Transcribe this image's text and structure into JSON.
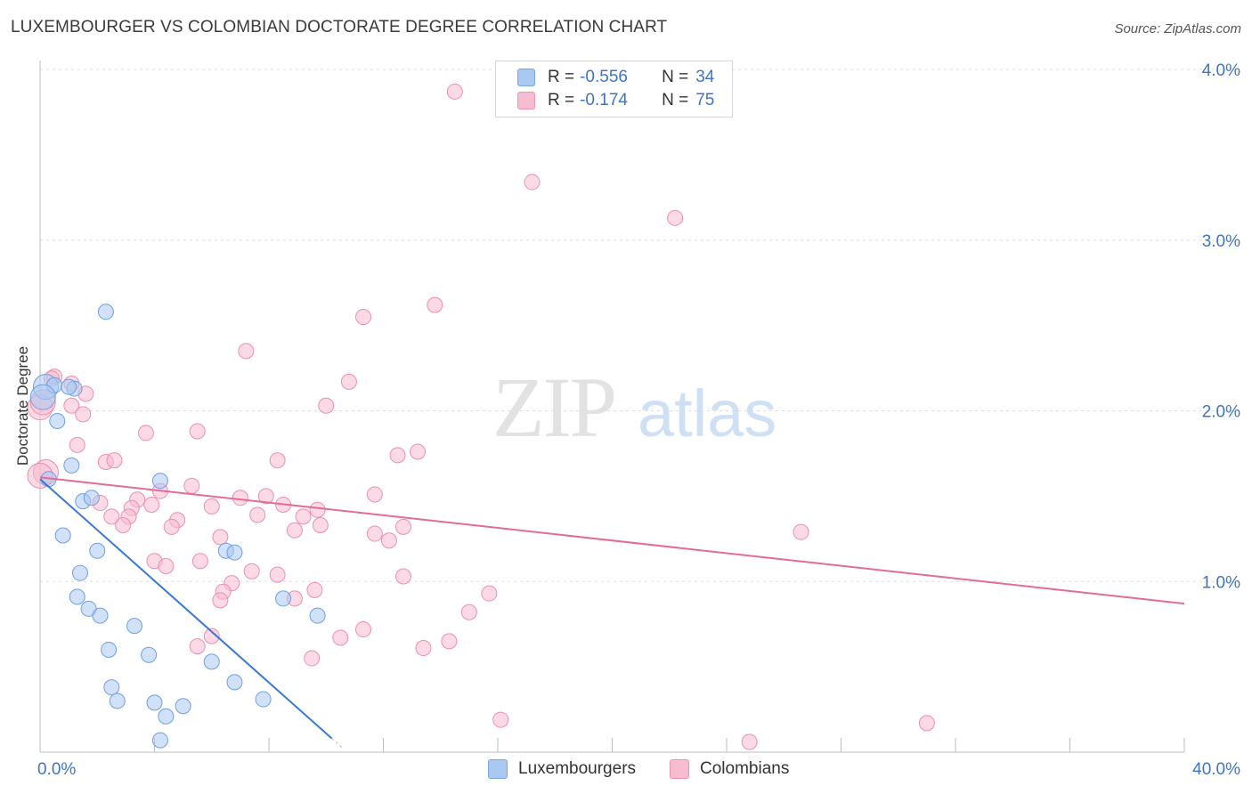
{
  "header": {
    "title": "LUXEMBOURGER VS COLOMBIAN DOCTORATE DEGREE CORRELATION CHART",
    "source": "Source: ZipAtlas.com"
  },
  "watermark": {
    "zip": "ZIP",
    "atlas": "atlas"
  },
  "legend": {
    "rows": [
      {
        "r_label": "R =",
        "r_value": "-0.556",
        "n_label": "N =",
        "n_value": "34",
        "color": "#a9c8f2",
        "border": "#7aa6e3"
      },
      {
        "r_label": "R =",
        "r_value": "-0.174",
        "n_label": "N =",
        "n_value": "75",
        "color": "#f7bcd0",
        "border": "#eb93b0"
      }
    ]
  },
  "bottom_legend": {
    "lux": "Luxembourgers",
    "col": "Colombians"
  },
  "chart_data": {
    "type": "scatter",
    "title": "LUXEMBOURGER VS COLOMBIAN DOCTORATE DEGREE CORRELATION CHART",
    "ylabel": "Doctorate Degree",
    "xlim": [
      0,
      40
    ],
    "ylim": [
      0,
      4.0
    ],
    "x_tick_labels": [
      "0.0%",
      "40.0%"
    ],
    "y_ticks": [
      1.0,
      2.0,
      3.0,
      4.0
    ],
    "y_tick_labels": [
      "1.0%",
      "2.0%",
      "3.0%",
      "4.0%"
    ],
    "grid": true,
    "series": [
      {
        "name": "Luxembourgers",
        "color": "#a9c8f2",
        "edge": "#6f9fe0",
        "trend_color": "#3a78d4",
        "trend": {
          "x0": 0.0,
          "y0": 1.6,
          "x1": 10.2,
          "y1": 0.08,
          "dash_to_x": 10.6
        },
        "points": [
          [
            0.2,
            2.14
          ],
          [
            0.5,
            2.15
          ],
          [
            1.2,
            2.13
          ],
          [
            0.6,
            1.94
          ],
          [
            2.3,
            2.58
          ],
          [
            0.3,
            1.6
          ],
          [
            1.1,
            1.68
          ],
          [
            4.2,
            1.59
          ],
          [
            1.5,
            1.47
          ],
          [
            1.8,
            1.49
          ],
          [
            0.8,
            1.27
          ],
          [
            2.0,
            1.18
          ],
          [
            6.5,
            1.18
          ],
          [
            6.8,
            1.17
          ],
          [
            1.4,
            1.05
          ],
          [
            1.3,
            0.91
          ],
          [
            1.7,
            0.84
          ],
          [
            2.1,
            0.8
          ],
          [
            8.5,
            0.9
          ],
          [
            3.3,
            0.74
          ],
          [
            9.7,
            0.8
          ],
          [
            2.4,
            0.6
          ],
          [
            3.8,
            0.57
          ],
          [
            6.0,
            0.53
          ],
          [
            2.5,
            0.38
          ],
          [
            6.8,
            0.41
          ],
          [
            2.7,
            0.3
          ],
          [
            4.0,
            0.29
          ],
          [
            5.0,
            0.27
          ],
          [
            7.8,
            0.31
          ],
          [
            4.4,
            0.21
          ],
          [
            4.2,
            0.07
          ],
          [
            0.1,
            2.08
          ],
          [
            1.0,
            2.14
          ]
        ]
      },
      {
        "name": "Colombians",
        "color": "#f7bcd0",
        "edge": "#eb8fae",
        "trend_color": "#e46b96",
        "trend": {
          "x0": 0.0,
          "y0": 1.61,
          "x1": 40.0,
          "y1": 0.87
        },
        "points": [
          [
            14.5,
            3.87
          ],
          [
            17.2,
            3.34
          ],
          [
            22.2,
            3.13
          ],
          [
            13.8,
            2.62
          ],
          [
            11.3,
            2.55
          ],
          [
            7.2,
            2.35
          ],
          [
            10.8,
            2.17
          ],
          [
            0.5,
            2.2
          ],
          [
            1.6,
            2.1
          ],
          [
            1.1,
            2.16
          ],
          [
            1.1,
            2.03
          ],
          [
            1.5,
            1.98
          ],
          [
            10.0,
            2.03
          ],
          [
            0.0,
            2.02
          ],
          [
            3.7,
            1.87
          ],
          [
            5.5,
            1.88
          ],
          [
            1.3,
            1.8
          ],
          [
            12.5,
            1.74
          ],
          [
            13.2,
            1.76
          ],
          [
            2.3,
            1.7
          ],
          [
            8.3,
            1.71
          ],
          [
            2.6,
            1.71
          ],
          [
            0.2,
            1.64
          ],
          [
            3.4,
            1.48
          ],
          [
            4.2,
            1.53
          ],
          [
            5.3,
            1.56
          ],
          [
            7.0,
            1.49
          ],
          [
            7.9,
            1.5
          ],
          [
            11.7,
            1.51
          ],
          [
            2.1,
            1.46
          ],
          [
            3.2,
            1.43
          ],
          [
            3.9,
            1.45
          ],
          [
            6.0,
            1.44
          ],
          [
            8.5,
            1.45
          ],
          [
            9.7,
            1.42
          ],
          [
            2.5,
            1.38
          ],
          [
            3.1,
            1.38
          ],
          [
            4.8,
            1.36
          ],
          [
            7.6,
            1.39
          ],
          [
            9.2,
            1.38
          ],
          [
            2.9,
            1.33
          ],
          [
            4.6,
            1.32
          ],
          [
            8.9,
            1.3
          ],
          [
            9.8,
            1.33
          ],
          [
            11.7,
            1.28
          ],
          [
            12.7,
            1.32
          ],
          [
            6.3,
            1.26
          ],
          [
            12.2,
            1.24
          ],
          [
            26.6,
            1.29
          ],
          [
            4.0,
            1.12
          ],
          [
            5.6,
            1.12
          ],
          [
            4.4,
            1.09
          ],
          [
            7.4,
            1.06
          ],
          [
            8.3,
            1.04
          ],
          [
            12.7,
            1.03
          ],
          [
            6.7,
            0.99
          ],
          [
            6.4,
            0.94
          ],
          [
            9.6,
            0.95
          ],
          [
            6.3,
            0.89
          ],
          [
            8.9,
            0.9
          ],
          [
            15.0,
            0.82
          ],
          [
            15.7,
            0.93
          ],
          [
            11.3,
            0.72
          ],
          [
            10.5,
            0.67
          ],
          [
            6.0,
            0.68
          ],
          [
            5.5,
            0.62
          ],
          [
            13.4,
            0.61
          ],
          [
            14.3,
            0.65
          ],
          [
            9.5,
            0.55
          ],
          [
            16.1,
            0.19
          ],
          [
            31.0,
            0.17
          ],
          [
            24.8,
            0.06
          ],
          [
            0.0,
            1.62
          ],
          [
            0.1,
            2.05
          ],
          [
            0.4,
            2.19
          ]
        ]
      }
    ]
  }
}
